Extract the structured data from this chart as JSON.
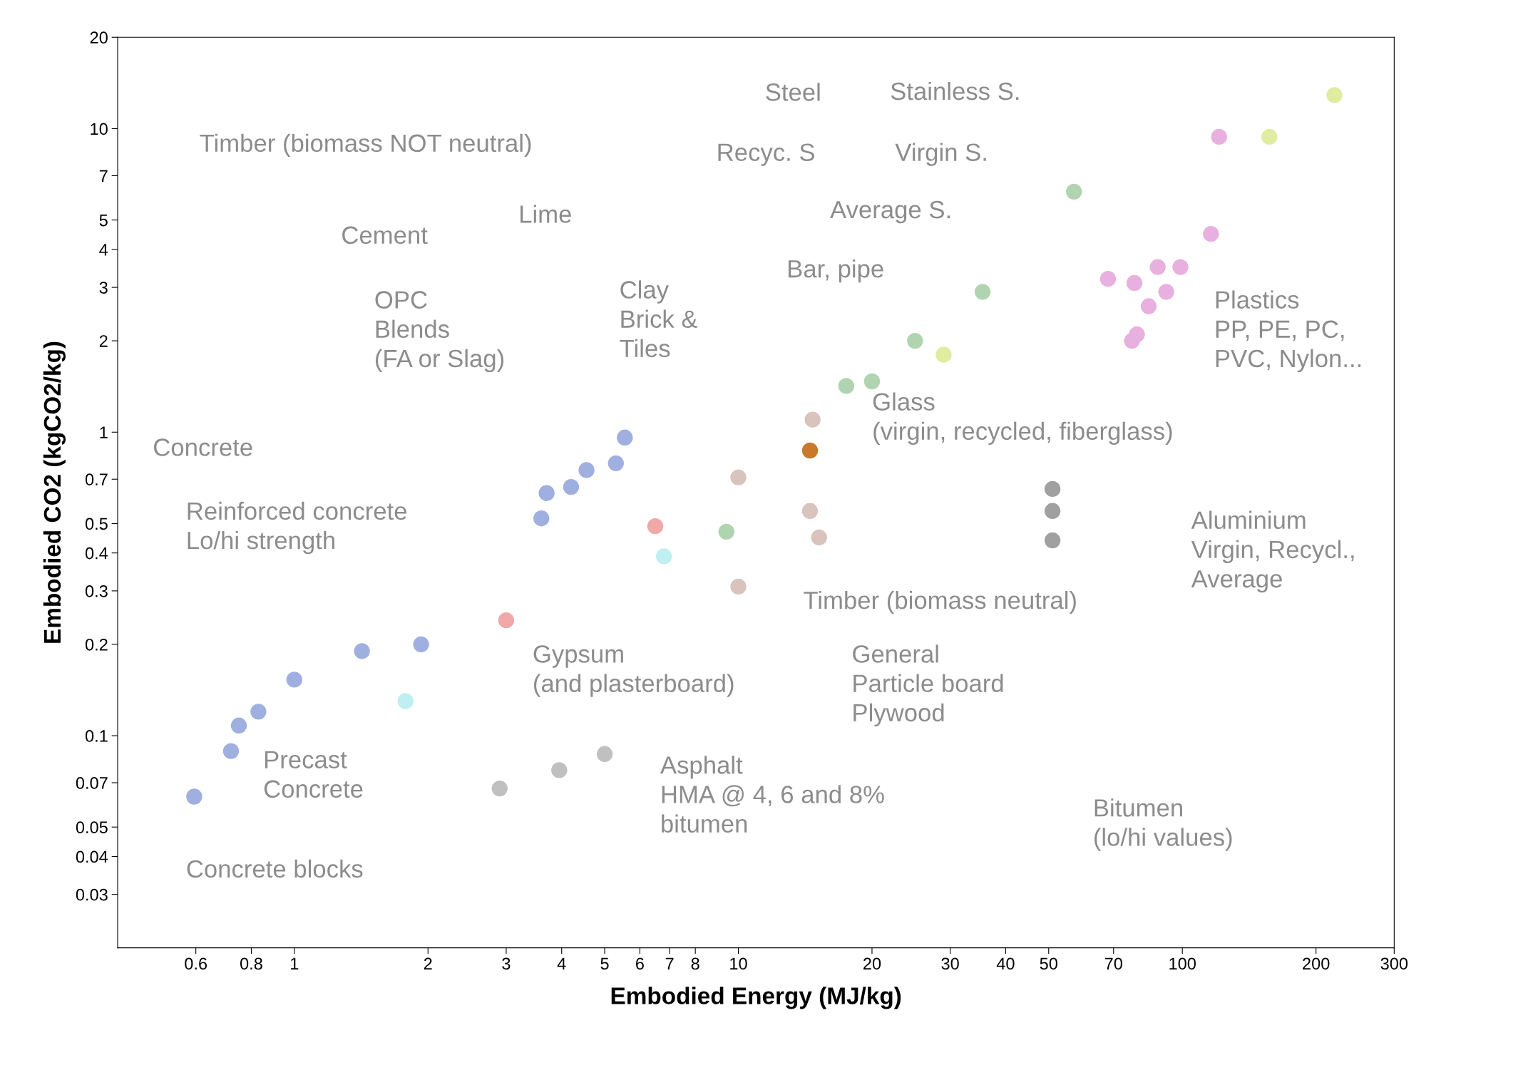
{
  "chart_data": {
    "type": "scatter",
    "xlabel": "Embodied Energy (MJ/kg)",
    "ylabel": "Embodied CO2 (kgCO2/kg)",
    "log": "xy",
    "xlim": [
      0.4,
      300
    ],
    "ylim": [
      0.02,
      20
    ],
    "xticks": [
      0.6,
      0.8,
      1,
      2,
      3,
      4,
      5,
      6,
      7,
      8,
      10,
      20,
      30,
      40,
      50,
      70,
      100,
      200,
      300
    ],
    "yticks": [
      0.03,
      0.04,
      0.05,
      0.07,
      0.1,
      0.2,
      0.3,
      0.4,
      0.5,
      0.7,
      1,
      2,
      3,
      4,
      5,
      7,
      10,
      20
    ],
    "grid": false,
    "marker": "circle",
    "series": [
      {
        "color": "#9fb0e0",
        "x": [
          0.595,
          0.72,
          0.75,
          0.83,
          1.0,
          1.42,
          1.93
        ],
        "values": [
          0.063,
          0.089,
          0.108,
          0.12,
          0.153,
          0.19,
          0.2
        ]
      },
      {
        "color": "#9fb0e0",
        "x": [
          3.6,
          3.7,
          4.2,
          4.55,
          5.3,
          5.55
        ],
        "values": [
          0.52,
          0.63,
          0.66,
          0.75,
          0.79,
          0.96
        ]
      },
      {
        "color": "#f0a8a8",
        "x": [
          3.0,
          6.5
        ],
        "values": [
          0.24,
          0.49
        ]
      },
      {
        "color": "#bfeff0",
        "x": [
          1.78,
          6.8
        ],
        "values": [
          0.13,
          0.39
        ]
      },
      {
        "color": "#c0c0c0",
        "x": [
          2.9,
          3.95,
          5.0
        ],
        "values": [
          0.067,
          0.077,
          0.087
        ]
      },
      {
        "color": "#d8c4bc",
        "x": [
          10,
          14.5,
          15.2,
          10,
          14.7
        ],
        "values": [
          0.71,
          0.55,
          0.45,
          0.31,
          1.1
        ]
      },
      {
        "color": "#b0d4b0",
        "x": [
          9.4,
          17.5,
          20,
          25,
          35.5,
          57
        ],
        "values": [
          0.47,
          1.42,
          1.47,
          2.0,
          2.9,
          6.2
        ]
      },
      {
        "color": "#c87a2a",
        "x": [
          14.5
        ],
        "values": [
          0.87
        ]
      },
      {
        "color": "#a0a0a0",
        "x": [
          51,
          51,
          51
        ],
        "values": [
          0.65,
          0.55,
          0.44
        ]
      },
      {
        "color": "#e0eca0",
        "x": [
          29,
          157,
          220
        ],
        "values": [
          1.8,
          9.4,
          12.9
        ]
      },
      {
        "color": "#e8b0de",
        "x": [
          68,
          78,
          88,
          99,
          92,
          84,
          79,
          77,
          116,
          121
        ],
        "values": [
          3.2,
          3.1,
          3.5,
          3.5,
          2.9,
          2.6,
          2.1,
          2.0,
          4.5,
          9.4
        ]
      }
    ],
    "annotations": [
      "Timber (biomass NOT neutral)",
      "Steel",
      "Stainless S.",
      "Recyc. S",
      "Virgin S.",
      "Average S.",
      "Bar, pipe",
      "Cement",
      "Lime",
      "Clay\nBrick &\nTiles",
      "OPC\nBlends\n(FA or Slag)",
      "Plastics\nPP, PE, PC,\nPVC, Nylon...",
      "Glass\n(virgin, recycled, fiberglass)",
      "Concrete",
      "Reinforced concrete\nLo/hi strength",
      "Aluminium\nVirgin, Recycl.,\nAverage",
      "Timber (biomass neutral)",
      "General\nParticle board\nPlywood",
      "Gypsum\n(and plasterboard)",
      "Precast\nConcrete",
      "Asphalt\nHMA @ 4, 6 and 8%\nbitumen",
      "Bitumen\n(lo/hi values)",
      "Concrete blocks"
    ]
  }
}
